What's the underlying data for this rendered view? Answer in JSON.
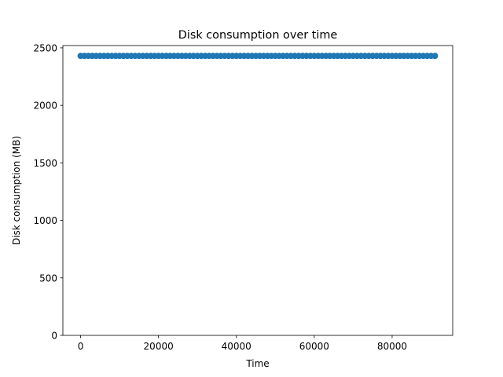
{
  "chart_data": {
    "type": "scatter",
    "title": "Disk consumption over time",
    "xlabel": "Time",
    "ylabel": "Disk consumption (MB)",
    "xlim": [
      -4550,
      95550
    ],
    "ylim": [
      0,
      2520
    ],
    "xticks": [
      0,
      20000,
      40000,
      60000,
      80000
    ],
    "yticks": [
      0,
      500,
      1000,
      1500,
      2000,
      2500
    ],
    "grid": false,
    "series": [
      {
        "color": "#1f77b4",
        "x_range": [
          0,
          91000
        ],
        "y_value": 2430,
        "note_point_count": 92
      }
    ]
  }
}
